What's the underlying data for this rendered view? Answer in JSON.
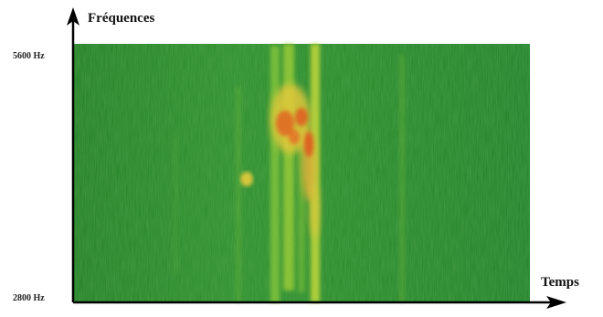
{
  "y_axis": {
    "label": "Fréquences",
    "max_tick": "5600 Hz",
    "min_tick": "2800 Hz"
  },
  "x_axis": {
    "label": "Temps"
  },
  "colors": {
    "background": "#2a8a2a",
    "signal_low": "#7fc23a",
    "signal_mid": "#e8d23a",
    "signal_high": "#e0401c",
    "axis": "#000000"
  }
}
